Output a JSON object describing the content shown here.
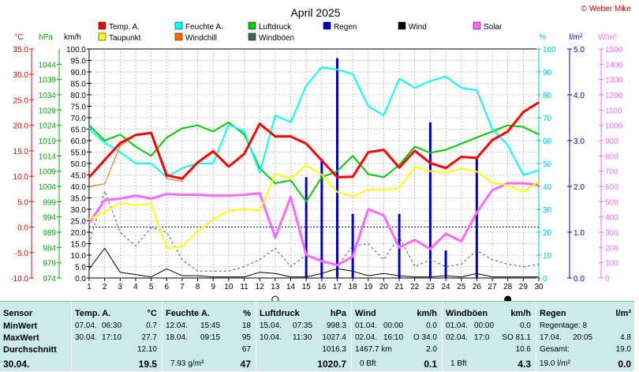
{
  "header": {
    "title": "April 2025",
    "copyright": "© Weber Mike"
  },
  "legend": [
    {
      "label": "Temp. A.",
      "color": "#ff0000"
    },
    {
      "label": "Feuchte A.",
      "color": "#00ffff"
    },
    {
      "label": "Luftdruck",
      "color": "#00cc00"
    },
    {
      "label": "Regen",
      "color": "#0000cc"
    },
    {
      "label": "Wind",
      "color": "#000000"
    },
    {
      "label": "Solar",
      "color": "#ff66ff"
    },
    {
      "label": "Taupunkt",
      "color": "#ffff00"
    },
    {
      "label": "Windchill",
      "color": "#ff6600"
    },
    {
      "label": "Windböen",
      "color": "#336666"
    }
  ],
  "axis_units": {
    "temp": "°C",
    "pressure": "hPa",
    "wind": "km/h",
    "humidity": "%",
    "rain": "l/m²",
    "solar": "W/m²"
  },
  "chart_data": {
    "type": "line",
    "title": "April 2025",
    "x": [
      1,
      2,
      3,
      4,
      5,
      6,
      7,
      8,
      9,
      10,
      11,
      12,
      13,
      14,
      15,
      16,
      17,
      18,
      19,
      20,
      21,
      22,
      23,
      24,
      25,
      26,
      27,
      28,
      29,
      30
    ],
    "x_ticks": [
      "1",
      "2",
      "3",
      "4",
      "5",
      "6",
      "7",
      "8",
      "9",
      "10",
      "11",
      "12",
      "13",
      "14",
      "15",
      "16",
      "17",
      "18",
      "19",
      "20",
      "21",
      "22",
      "23",
      "24",
      "25",
      "26",
      "27",
      "28",
      "29",
      "30"
    ],
    "axes": {
      "temp": {
        "label": "°C",
        "ylim": [
          -10,
          35
        ],
        "ticks": [
          "35.0",
          "30.0",
          "25.0",
          "20.0",
          "15.0",
          "10.0",
          "5.0",
          "0.0",
          "-5.0",
          "-10.0"
        ]
      },
      "pressure": {
        "label": "hPa",
        "ylim": [
          974,
          1049
        ],
        "ticks": [
          "1044",
          "1039",
          "1034",
          "1029",
          "1024",
          "1019",
          "1014",
          "1009",
          "1004",
          "999",
          "994",
          "989",
          "984",
          "979",
          "974"
        ]
      },
      "wind": {
        "label": "km/h",
        "ylim": [
          0,
          100
        ],
        "ticks": [
          "100.0",
          "95.0",
          "90.0",
          "85.0",
          "80.0",
          "75.0",
          "70.0",
          "65.0",
          "60.0",
          "55.0",
          "50.0",
          "45.0",
          "40.0",
          "35.0",
          "30.0",
          "25.0",
          "20.0",
          "15.0",
          "10.0",
          "5.0",
          "0.0"
        ]
      },
      "humidity": {
        "label": "%",
        "ylim": [
          0,
          100
        ],
        "ticks": [
          "100",
          "90",
          "80",
          "70",
          "60",
          "50",
          "40",
          "30",
          "20",
          "10",
          "0"
        ]
      },
      "rain": {
        "label": "l/m²",
        "ylim": [
          0,
          5
        ],
        "ticks": [
          "5.0",
          "4.0",
          "3.0",
          "2.0",
          "1.0",
          "0.0"
        ]
      },
      "solar": {
        "label": "W/m²",
        "ylim": [
          0,
          1500
        ],
        "ticks": [
          "1500",
          "1400",
          "1300",
          "1200",
          "1100",
          "1000",
          "900",
          "800",
          "700",
          "600",
          "500",
          "400",
          "300",
          "200",
          "100",
          "0"
        ]
      }
    },
    "series": [
      {
        "name": "Temp. A.",
        "axis": "temp",
        "color": "#ff0000",
        "width": 3,
        "values": [
          9.8,
          13.2,
          16.5,
          18.1,
          18.5,
          10.2,
          9.5,
          12.7,
          14.9,
          11.9,
          14.4,
          20.3,
          17.8,
          17.8,
          16.4,
          13.1,
          9.8,
          9.9,
          14.7,
          15.2,
          11.7,
          15.0,
          12.6,
          11.6,
          13.8,
          13.6,
          17.1,
          18.8,
          22.6,
          24.5
        ]
      },
      {
        "name": "Taupunkt",
        "axis": "temp",
        "color": "#ffff00",
        "width": 2,
        "values": [
          1.5,
          3.0,
          4.8,
          4.3,
          4.6,
          -4.2,
          -3.8,
          -0.8,
          1.5,
          3.2,
          3.6,
          3.2,
          10.4,
          9.6,
          12.1,
          10.3,
          6.9,
          6.0,
          7.4,
          7.3,
          7.6,
          11.8,
          11.0,
          10.7,
          11.5,
          10.9,
          8.7,
          8.2,
          6.9,
          9.0
        ]
      },
      {
        "name": "Windchill",
        "axis": "temp",
        "color": "#ff6600",
        "width": 1,
        "values": [
          8.0,
          8.5,
          16.0,
          18.0,
          18.5,
          9.5,
          9.0,
          null,
          null,
          null,
          null,
          null,
          null,
          null,
          null,
          null,
          null,
          null,
          null,
          null,
          null,
          null,
          null,
          null,
          null,
          null,
          null,
          null,
          null,
          null
        ]
      },
      {
        "name": "Luftdruck",
        "axis": "pressure",
        "color": "#00cc00",
        "width": 2,
        "values": [
          1024,
          1019,
          1021,
          1017,
          1014,
          1020,
          1023,
          1024,
          1022,
          1025,
          1021,
          1010,
          1005,
          1006,
          999,
          1007,
          1009,
          1014,
          1008,
          1007,
          1011,
          1017,
          1015,
          1016,
          1018,
          1020,
          1022,
          1024,
          1023.5,
          1021
        ]
      },
      {
        "name": "Feuchte A.",
        "axis": "humidity",
        "color": "#00ffff",
        "width": 2,
        "values": [
          65,
          59,
          55,
          50,
          50,
          44,
          48,
          50,
          50,
          67,
          64,
          46,
          71,
          68,
          84,
          92,
          91,
          89,
          75,
          71,
          87,
          83,
          86,
          88,
          83,
          82,
          65,
          58,
          45,
          47
        ]
      },
      {
        "name": "Wind",
        "axis": "wind",
        "color": "#000000",
        "width": 1,
        "values": [
          4,
          13,
          2.5,
          1.5,
          0.5,
          4,
          1,
          1,
          0.5,
          0.5,
          0.5,
          2.5,
          2,
          0.5,
          0.5,
          2,
          4,
          3,
          1,
          2,
          1,
          0.5,
          0.5,
          1,
          0.5,
          2,
          0.5,
          0.5,
          0.5,
          0.5
        ]
      },
      {
        "name": "Windböen",
        "axis": "wind",
        "color": "#336666",
        "width": 1,
        "dash": true,
        "values": [
          15,
          38,
          20,
          14,
          22,
          20,
          8,
          3,
          3,
          3,
          5,
          8,
          13,
          5,
          10,
          8,
          5,
          14,
          15,
          8,
          18,
          5,
          8,
          5,
          6,
          12,
          8,
          6,
          5,
          6
        ]
      },
      {
        "name": "Solar",
        "axis": "solar",
        "color": "#ff66ff",
        "width": 3,
        "values": [
          360,
          510,
          520,
          540,
          520,
          550,
          545,
          545,
          540,
          540,
          545,
          555,
          265,
          530,
          150,
          110,
          85,
          140,
          450,
          410,
          200,
          250,
          190,
          290,
          240,
          430,
          575,
          620,
          620,
          610
        ]
      }
    ],
    "rain": {
      "name": "Regen",
      "axis": "rain",
      "color": "#0000cc",
      "days": [
        15,
        16,
        17,
        18,
        21,
        23,
        24,
        26
      ],
      "values": [
        2.2,
        2.6,
        4.8,
        1.4,
        1.4,
        3.4,
        0.6,
        2.6
      ]
    },
    "zero_line": {
      "temp": 0
    }
  },
  "table": {
    "sensor": {
      "title": "Sensor",
      "rows": [
        "MinWert",
        "MaxWert",
        "Durchschnitt"
      ],
      "date": "30.04."
    },
    "temp": {
      "title": "Temp. A.",
      "unit": "°C",
      "min": {
        "date": "07.04.",
        "time": "06:30",
        "val": "0.7"
      },
      "max": {
        "date": "30.04.",
        "time": "17:10",
        "val": "27.7"
      },
      "avg": "12.10",
      "now": "19.5"
    },
    "humid": {
      "title": "Feuchte A.",
      "unit": "%",
      "min": {
        "date": "12.04.",
        "time": "15:45",
        "val": "18"
      },
      "max": {
        "date": "18.04.",
        "time": "09:15",
        "val": "95"
      },
      "avg": "67",
      "extra": "7.93 g/m³",
      "now": "47"
    },
    "press": {
      "title": "Luftdruck",
      "unit": "hPa",
      "min": {
        "date": "15.04.",
        "time": "07:35",
        "val": "998.3"
      },
      "max": {
        "date": "10.04.",
        "time": "11:30",
        "val": "1027.4"
      },
      "avg": "1016.3",
      "now": "1020.7"
    },
    "wind": {
      "title": "Wind",
      "unit": "km/h",
      "min": {
        "date": "01.04.",
        "time": "00:00",
        "val": "0.0"
      },
      "max": {
        "date": "02.04.",
        "time": "16:10",
        "val": "O 34.0"
      },
      "dist": "1467.7 km",
      "avg": "2.0",
      "bft": "0 Bft",
      "now": "0.1"
    },
    "gust": {
      "title": "Windböen",
      "unit": "km/h",
      "min": {
        "date": "01.04.",
        "time": "00:00",
        "val": "0.0"
      },
      "max": {
        "date": "02.04.",
        "time": "17:0",
        "val": "SO 81.1"
      },
      "avg": "10.6",
      "bft": "1 Bft",
      "now": "4.3"
    },
    "rain": {
      "title": "Regen",
      "unit": "l/m²",
      "days": "Regentage: 8",
      "max": {
        "date": "17.04.",
        "time": "20:05",
        "val": "4.8"
      },
      "total_label": "Gesamt:",
      "total": "19.0",
      "now": "19.0 l/m²",
      "now2": "0.0"
    }
  }
}
